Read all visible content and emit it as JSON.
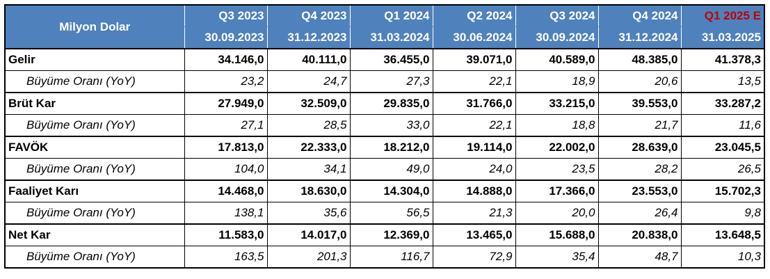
{
  "header": {
    "corner_label": "Milyon Dolar",
    "columns": [
      {
        "quarter": "Q3 2023",
        "date": "30.09.2023",
        "estimate": false
      },
      {
        "quarter": "Q4 2023",
        "date": "31.12.2023",
        "estimate": false
      },
      {
        "quarter": "Q1 2024",
        "date": "31.03.2024",
        "estimate": false
      },
      {
        "quarter": "Q2 2024",
        "date": "30.06.2024",
        "estimate": false
      },
      {
        "quarter": "Q3 2024",
        "date": "30.09.2024",
        "estimate": false
      },
      {
        "quarter": "Q4 2024",
        "date": "31.12.2024",
        "estimate": false
      },
      {
        "quarter": "Q1 2025 E",
        "date": "31.03.2025",
        "estimate": true
      }
    ]
  },
  "colors": {
    "header_bg": "#4f81bd",
    "header_text": "#ffffff",
    "estimate_text": "#c00000"
  },
  "rows": [
    {
      "type": "main",
      "label": "Gelir",
      "values": [
        "34.146,0",
        "40.111,0",
        "36.455,0",
        "39.071,0",
        "40.589,0",
        "48.385,0",
        "41.378,3"
      ]
    },
    {
      "type": "sub",
      "label": "Büyüme Oranı (YoY)",
      "values": [
        "23,2",
        "24,7",
        "27,3",
        "22,1",
        "18,9",
        "20,6",
        "13,5"
      ]
    },
    {
      "type": "main",
      "label": "Brüt Kar",
      "values": [
        "27.949,0",
        "32.509,0",
        "29.835,0",
        "31.766,0",
        "33.215,0",
        "39.553,0",
        "33.287,2"
      ]
    },
    {
      "type": "sub",
      "label": "Büyüme Oranı (YoY)",
      "values": [
        "27,1",
        "28,5",
        "33,0",
        "22,1",
        "18,8",
        "21,7",
        "11,6"
      ]
    },
    {
      "type": "main",
      "label": "FAVÖK",
      "values": [
        "17.813,0",
        "22.333,0",
        "18.212,0",
        "19.114,0",
        "22.002,0",
        "28.639,0",
        "23.045,5"
      ]
    },
    {
      "type": "sub",
      "label": "Büyüme Oranı (YoY)",
      "values": [
        "104,0",
        "34,1",
        "49,0",
        "24,0",
        "23,5",
        "28,2",
        "26,5"
      ]
    },
    {
      "type": "main",
      "label": "Faaliyet Karı",
      "values": [
        "14.468,0",
        "18.630,0",
        "14.304,0",
        "14.888,0",
        "17.366,0",
        "23.553,0",
        "15.702,3"
      ]
    },
    {
      "type": "sub",
      "label": "Büyüme Oranı (YoY)",
      "values": [
        "138,1",
        "35,6",
        "56,5",
        "21,3",
        "20,0",
        "26,4",
        "9,8"
      ]
    },
    {
      "type": "main",
      "label": "Net Kar",
      "values": [
        "11.583,0",
        "14.017,0",
        "12.369,0",
        "13.465,0",
        "15.688,0",
        "20.838,0",
        "13.648,5"
      ]
    },
    {
      "type": "sub",
      "label": "Büyüme Oranı (YoY)",
      "values": [
        "163,5",
        "201,3",
        "116,7",
        "72,9",
        "35,4",
        "48,7",
        "10,3"
      ]
    }
  ]
}
